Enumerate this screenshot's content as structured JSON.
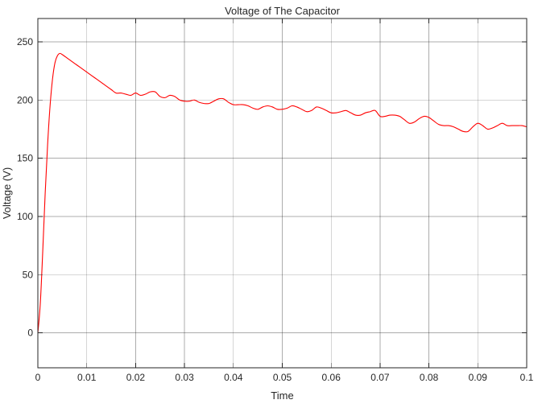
{
  "chart_data": {
    "type": "line",
    "title": "Voltage of The Capacitor",
    "xlabel": "Time",
    "ylabel": "Voltage (V)",
    "xlim": [
      0,
      0.1
    ],
    "ylim": [
      -30,
      270
    ],
    "x_ticks": [
      0,
      0.01,
      0.02,
      0.03,
      0.04,
      0.05,
      0.06,
      0.07,
      0.08,
      0.09,
      0.1
    ],
    "x_tick_labels": [
      "0",
      "0.01",
      "0.02",
      "0.03",
      "0.04",
      "0.05",
      "0.06",
      "0.07",
      "0.08",
      "0.09",
      "0.1"
    ],
    "y_ticks": [
      0,
      50,
      100,
      150,
      200,
      250
    ],
    "y_tick_labels": [
      "0",
      "50",
      "100",
      "150",
      "200",
      "250"
    ],
    "grid": true,
    "legend": "none",
    "series": [
      {
        "color": "#ff0000",
        "x": [
          0,
          0.0005,
          0.001,
          0.0015,
          0.002,
          0.0025,
          0.003,
          0.0035,
          0.004,
          0.0045,
          0.005,
          0.006,
          0.007,
          0.008,
          0.009,
          0.01,
          0.011,
          0.012,
          0.013,
          0.014,
          0.015,
          0.016,
          0.017,
          0.018,
          0.019,
          0.02,
          0.021,
          0.022,
          0.023,
          0.024,
          0.025,
          0.026,
          0.027,
          0.028,
          0.029,
          0.03,
          0.031,
          0.032,
          0.033,
          0.034,
          0.035,
          0.036,
          0.037,
          0.038,
          0.039,
          0.04,
          0.041,
          0.042,
          0.043,
          0.044,
          0.045,
          0.046,
          0.047,
          0.048,
          0.049,
          0.05,
          0.051,
          0.052,
          0.053,
          0.054,
          0.055,
          0.056,
          0.057,
          0.058,
          0.059,
          0.06,
          0.061,
          0.062,
          0.063,
          0.064,
          0.065,
          0.066,
          0.067,
          0.068,
          0.069,
          0.07,
          0.071,
          0.072,
          0.073,
          0.074,
          0.075,
          0.076,
          0.077,
          0.078,
          0.079,
          0.08,
          0.081,
          0.082,
          0.083,
          0.084,
          0.085,
          0.086,
          0.087,
          0.088,
          0.089,
          0.09,
          0.091,
          0.092,
          0.093,
          0.094,
          0.095,
          0.096,
          0.097,
          0.098,
          0.099,
          0.1
        ],
        "y": [
          0,
          25,
          70,
          120,
          162,
          195,
          218,
          232,
          238,
          240,
          239,
          236,
          233,
          230,
          227,
          224,
          221,
          218,
          215,
          212,
          209,
          206,
          206,
          205,
          204,
          206,
          204,
          205,
          207,
          207,
          203,
          202,
          204,
          203,
          200,
          199,
          199,
          200,
          198,
          197,
          197,
          199,
          201,
          201,
          198,
          196,
          196,
          196,
          195,
          193,
          192,
          194,
          195,
          194,
          192,
          192,
          193,
          195,
          194,
          192,
          190,
          191,
          194,
          193,
          191,
          189,
          189,
          190,
          191,
          189,
          187,
          187,
          189,
          190,
          191,
          186,
          186,
          187,
          187,
          186,
          183,
          180,
          181,
          184,
          186,
          185,
          182,
          179,
          178,
          178,
          177,
          175,
          173,
          173,
          177,
          180,
          178,
          175,
          176,
          178,
          180,
          178,
          178,
          178,
          178,
          177
        ],
        "note_values": "approximate readings from the plotted curve"
      }
    ]
  }
}
